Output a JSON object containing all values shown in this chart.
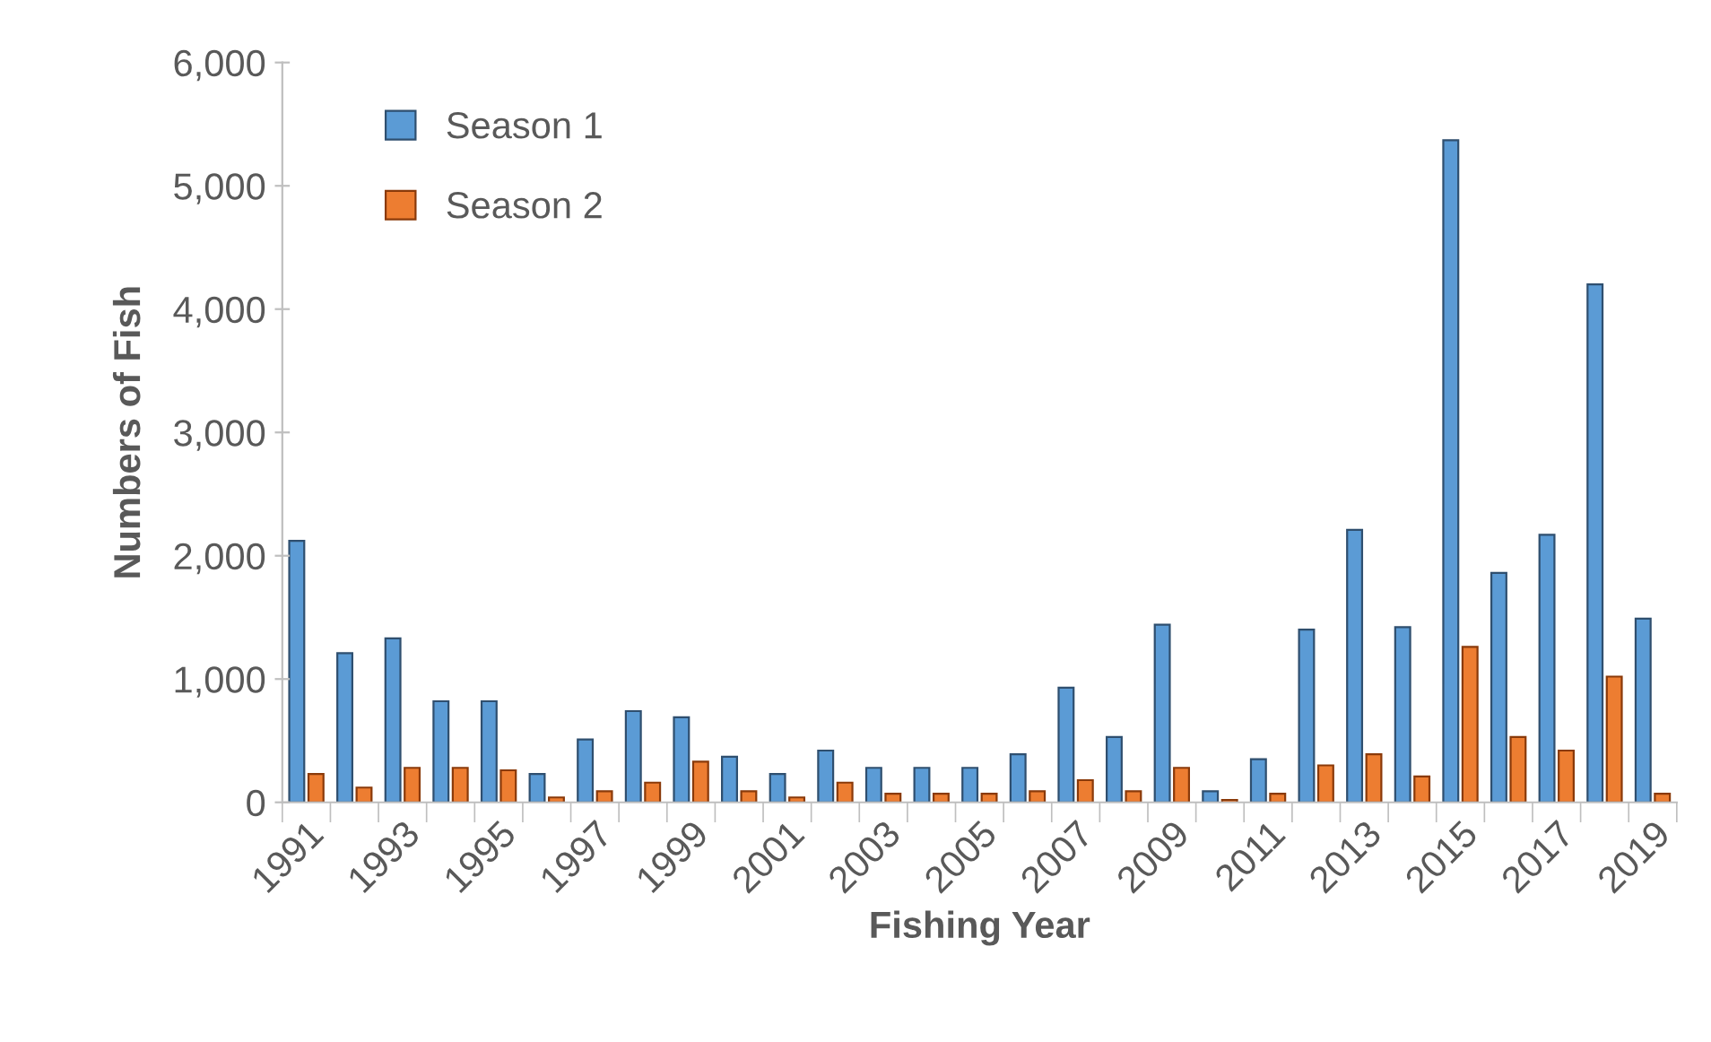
{
  "chart_data": {
    "type": "bar",
    "xlabel": "Fishing Year",
    "ylabel": "Numbers of Fish",
    "categories": [
      "1991",
      null,
      "1993",
      null,
      "1995",
      null,
      "1997",
      null,
      "1999",
      null,
      "2001",
      null,
      "2003",
      null,
      "2005",
      null,
      "2007",
      null,
      "2009",
      null,
      "2011",
      null,
      "2013",
      null,
      "2015",
      null,
      "2017",
      null,
      "2019"
    ],
    "series": [
      {
        "name": "Season 1",
        "color": "#5b9bd5",
        "values": [
          2120,
          1210,
          1330,
          820,
          820,
          230,
          510,
          740,
          690,
          370,
          230,
          420,
          280,
          280,
          280,
          390,
          930,
          530,
          1440,
          90,
          350,
          1400,
          2210,
          1420,
          5370,
          1860,
          2170,
          4200,
          1490
        ]
      },
      {
        "name": "Season 2",
        "color": "#ed7d31",
        "values": [
          230,
          120,
          280,
          280,
          260,
          40,
          90,
          160,
          330,
          90,
          40,
          160,
          70,
          70,
          70,
          90,
          180,
          90,
          280,
          20,
          70,
          300,
          390,
          210,
          1260,
          530,
          420,
          1020,
          70
        ]
      }
    ],
    "ylim": [
      0,
      6000
    ],
    "yticks": [
      {
        "value": 0,
        "label": "0"
      },
      {
        "value": 1000,
        "label": "1,000"
      },
      {
        "value": 2000,
        "label": "2,000"
      },
      {
        "value": 3000,
        "label": "3,000"
      },
      {
        "value": 4000,
        "label": "4,000"
      },
      {
        "value": 5000,
        "label": "5,000"
      },
      {
        "value": 6000,
        "label": "6,000"
      }
    ],
    "grid": false,
    "legend": "top left"
  }
}
